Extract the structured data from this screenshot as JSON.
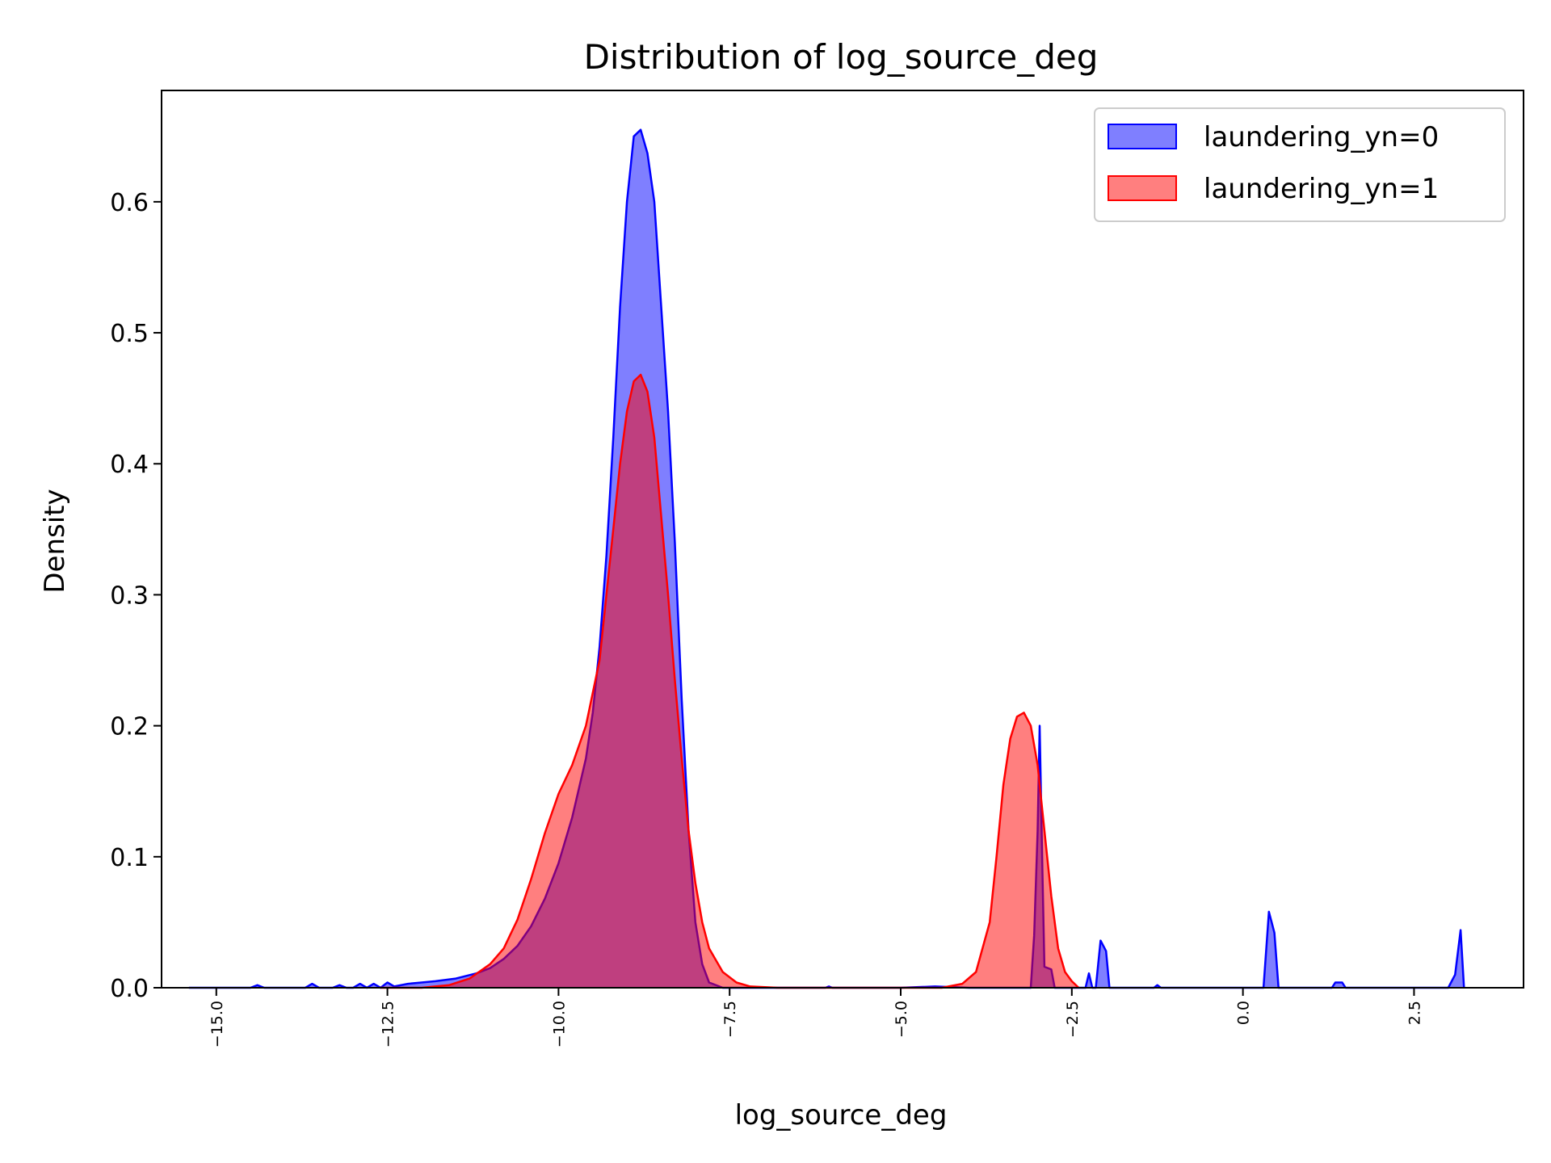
{
  "chart_data": {
    "type": "area",
    "title": "Distribution of log_source_deg",
    "xlabel": "log_source_deg",
    "ylabel": "Density",
    "xlim": [
      -15.8,
      4.1
    ],
    "ylim": [
      0.0,
      0.685
    ],
    "xticks": [
      -15.0,
      -12.5,
      -10.0,
      -7.5,
      -5.0,
      -2.5,
      0.0,
      2.5
    ],
    "xtick_labels": [
      "−15.0",
      "−12.5",
      "−10.0",
      "−7.5",
      "−5.0",
      "−2.5",
      "0.0",
      "2.5"
    ],
    "yticks": [
      0.0,
      0.1,
      0.2,
      0.3,
      0.4,
      0.5,
      0.6
    ],
    "ytick_labels": [
      "0.0",
      "0.1",
      "0.2",
      "0.3",
      "0.4",
      "0.5",
      "0.6"
    ],
    "grid": false,
    "legend_position": "top-right",
    "series": [
      {
        "name": "laundering_yn=0",
        "fill": "#0000ff",
        "stroke": "#0000ff",
        "fill_opacity": 0.5,
        "points": [
          [
            -15.4,
            0.0
          ],
          [
            -14.5,
            0.0
          ],
          [
            -14.4,
            0.002
          ],
          [
            -14.3,
            0.0
          ],
          [
            -13.7,
            0.0
          ],
          [
            -13.6,
            0.003
          ],
          [
            -13.5,
            0.0
          ],
          [
            -13.3,
            0.0
          ],
          [
            -13.2,
            0.002
          ],
          [
            -13.1,
            0.0
          ],
          [
            -13.0,
            0.0
          ],
          [
            -12.9,
            0.003
          ],
          [
            -12.8,
            0.0
          ],
          [
            -12.7,
            0.003
          ],
          [
            -12.6,
            0.0
          ],
          [
            -12.5,
            0.004
          ],
          [
            -12.4,
            0.001
          ],
          [
            -12.2,
            0.003
          ],
          [
            -12.0,
            0.004
          ],
          [
            -11.8,
            0.005
          ],
          [
            -11.5,
            0.007
          ],
          [
            -11.2,
            0.011
          ],
          [
            -11.0,
            0.015
          ],
          [
            -10.8,
            0.022
          ],
          [
            -10.6,
            0.032
          ],
          [
            -10.4,
            0.047
          ],
          [
            -10.2,
            0.068
          ],
          [
            -10.0,
            0.095
          ],
          [
            -9.8,
            0.13
          ],
          [
            -9.6,
            0.175
          ],
          [
            -9.5,
            0.21
          ],
          [
            -9.4,
            0.26
          ],
          [
            -9.3,
            0.33
          ],
          [
            -9.2,
            0.42
          ],
          [
            -9.1,
            0.52
          ],
          [
            -9.0,
            0.6
          ],
          [
            -8.9,
            0.65
          ],
          [
            -8.8,
            0.655
          ],
          [
            -8.7,
            0.637
          ],
          [
            -8.6,
            0.6
          ],
          [
            -8.5,
            0.52
          ],
          [
            -8.4,
            0.44
          ],
          [
            -8.3,
            0.34
          ],
          [
            -8.2,
            0.22
          ],
          [
            -8.1,
            0.12
          ],
          [
            -8.0,
            0.05
          ],
          [
            -7.9,
            0.018
          ],
          [
            -7.8,
            0.004
          ],
          [
            -7.6,
            0.0
          ],
          [
            -6.1,
            0.0
          ],
          [
            -6.05,
            0.001
          ],
          [
            -6.0,
            0.0
          ],
          [
            -5.5,
            0.0
          ],
          [
            -5.0,
            0.0
          ],
          [
            -4.5,
            0.001
          ],
          [
            -4.0,
            0.0
          ],
          [
            -3.5,
            0.0
          ],
          [
            -3.1,
            0.0
          ],
          [
            -3.05,
            0.04
          ],
          [
            -3.0,
            0.12
          ],
          [
            -2.97,
            0.2
          ],
          [
            -2.93,
            0.09
          ],
          [
            -2.9,
            0.016
          ],
          [
            -2.8,
            0.014
          ],
          [
            -2.75,
            0.0
          ],
          [
            -2.3,
            0.0
          ],
          [
            -2.25,
            0.011
          ],
          [
            -2.2,
            0.0
          ],
          [
            -2.15,
            0.0
          ],
          [
            -2.08,
            0.036
          ],
          [
            -2.0,
            0.028
          ],
          [
            -1.95,
            0.0
          ],
          [
            -1.3,
            0.0
          ],
          [
            -1.25,
            0.002
          ],
          [
            -1.2,
            0.0
          ],
          [
            0.3,
            0.0
          ],
          [
            0.38,
            0.058
          ],
          [
            0.46,
            0.042
          ],
          [
            0.52,
            0.0
          ],
          [
            1.3,
            0.0
          ],
          [
            1.35,
            0.004
          ],
          [
            1.45,
            0.004
          ],
          [
            1.5,
            0.0
          ],
          [
            3.0,
            0.0
          ],
          [
            3.1,
            0.01
          ],
          [
            3.18,
            0.044
          ],
          [
            3.23,
            0.0
          ]
        ]
      },
      {
        "name": "laundering_yn=1",
        "fill": "#ff0000",
        "stroke": "#ff0000",
        "fill_opacity": 0.5,
        "points": [
          [
            -12.6,
            0.0
          ],
          [
            -12.0,
            0.0
          ],
          [
            -11.6,
            0.002
          ],
          [
            -11.3,
            0.007
          ],
          [
            -11.0,
            0.018
          ],
          [
            -10.8,
            0.03
          ],
          [
            -10.6,
            0.052
          ],
          [
            -10.4,
            0.083
          ],
          [
            -10.2,
            0.118
          ],
          [
            -10.0,
            0.148
          ],
          [
            -9.8,
            0.17
          ],
          [
            -9.6,
            0.2
          ],
          [
            -9.4,
            0.25
          ],
          [
            -9.3,
            0.3
          ],
          [
            -9.2,
            0.35
          ],
          [
            -9.1,
            0.4
          ],
          [
            -9.0,
            0.44
          ],
          [
            -8.9,
            0.463
          ],
          [
            -8.8,
            0.468
          ],
          [
            -8.7,
            0.455
          ],
          [
            -8.6,
            0.42
          ],
          [
            -8.5,
            0.36
          ],
          [
            -8.4,
            0.3
          ],
          [
            -8.3,
            0.235
          ],
          [
            -8.2,
            0.175
          ],
          [
            -8.1,
            0.12
          ],
          [
            -8.0,
            0.08
          ],
          [
            -7.9,
            0.05
          ],
          [
            -7.8,
            0.03
          ],
          [
            -7.6,
            0.012
          ],
          [
            -7.4,
            0.004
          ],
          [
            -7.2,
            0.001
          ],
          [
            -6.8,
            0.0
          ],
          [
            -4.4,
            0.0
          ],
          [
            -4.1,
            0.003
          ],
          [
            -3.9,
            0.012
          ],
          [
            -3.7,
            0.05
          ],
          [
            -3.6,
            0.1
          ],
          [
            -3.5,
            0.155
          ],
          [
            -3.4,
            0.19
          ],
          [
            -3.3,
            0.207
          ],
          [
            -3.2,
            0.21
          ],
          [
            -3.1,
            0.2
          ],
          [
            -3.0,
            0.17
          ],
          [
            -2.9,
            0.12
          ],
          [
            -2.8,
            0.07
          ],
          [
            -2.7,
            0.03
          ],
          [
            -2.6,
            0.012
          ],
          [
            -2.5,
            0.005
          ],
          [
            -2.4,
            0.0
          ]
        ]
      }
    ]
  }
}
